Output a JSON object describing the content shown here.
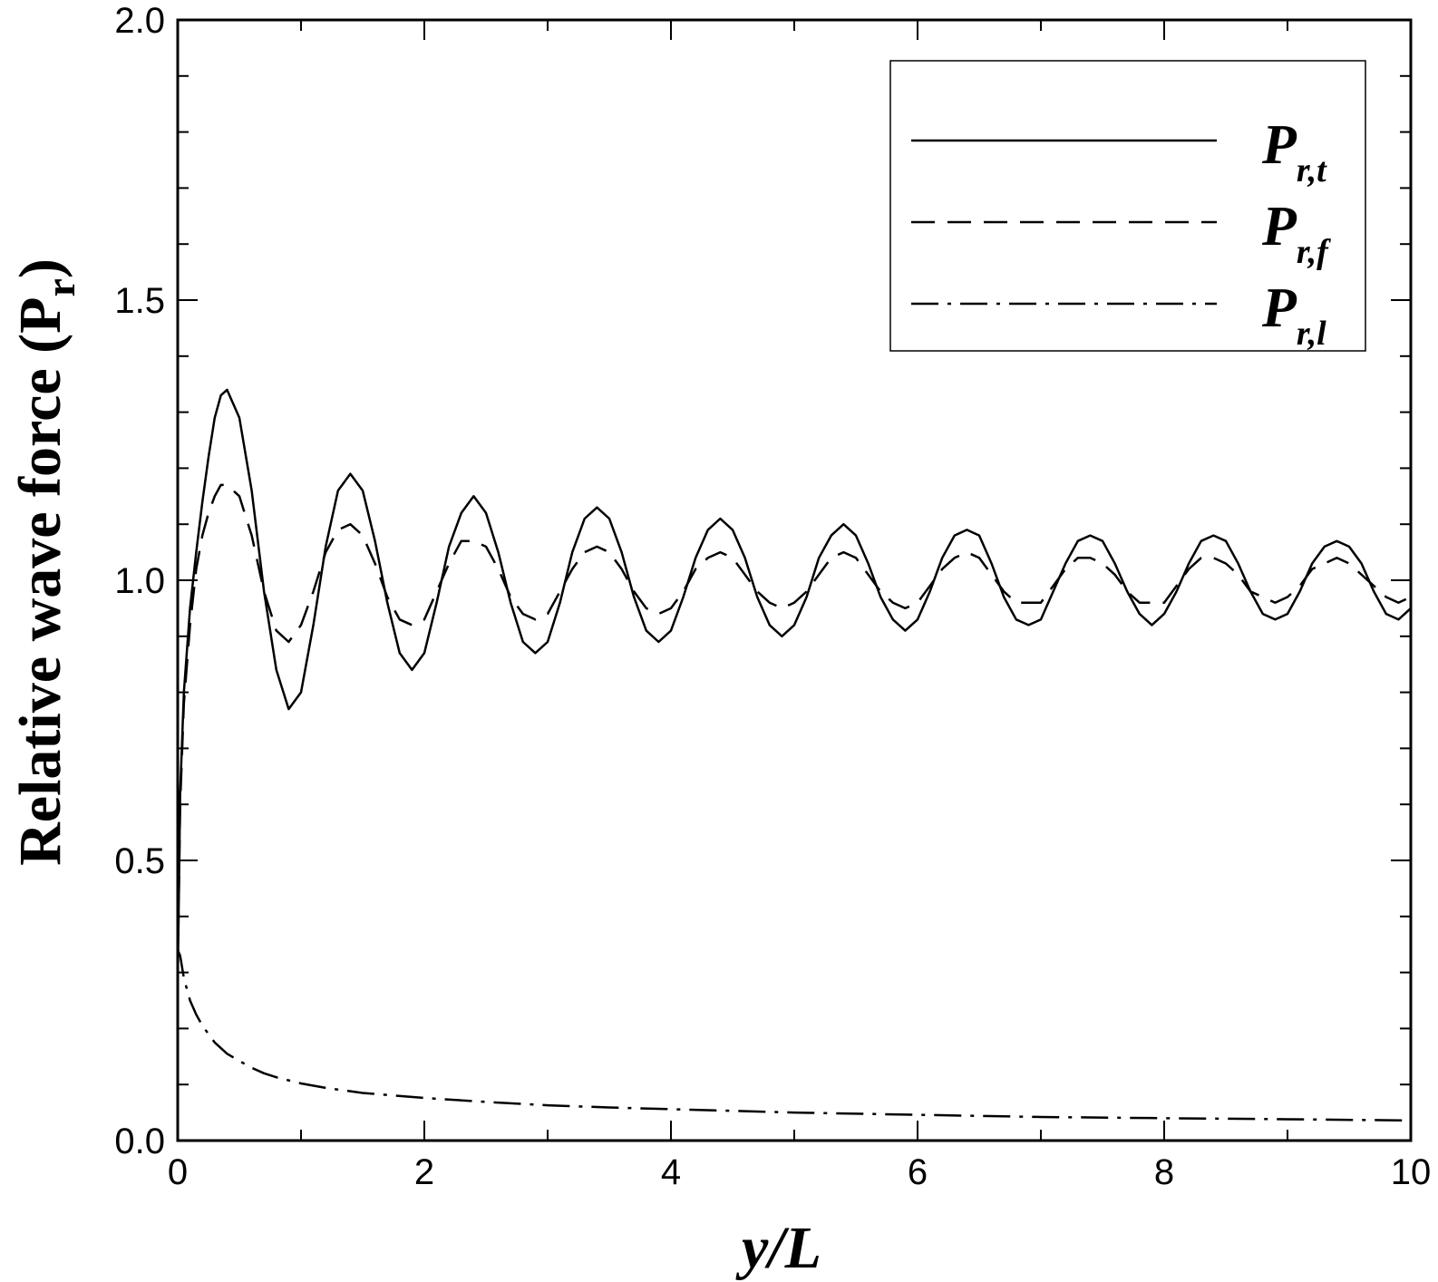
{
  "chart_data": {
    "type": "line",
    "xlabel": "y/L",
    "ylabel_main": "Relative wave force (P",
    "ylabel_sub": "r",
    "ylabel_close": ")",
    "xlim": [
      0,
      10
    ],
    "ylim": [
      0,
      2.0
    ],
    "x_ticks": [
      0,
      2,
      4,
      6,
      8,
      10
    ],
    "x_tick_labels": [
      "0",
      "2",
      "4",
      "6",
      "8",
      "10"
    ],
    "y_ticks": [
      0,
      0.5,
      1.0,
      1.5,
      2.0
    ],
    "y_tick_labels": [
      "0.0",
      "0.5",
      "1.0",
      "1.5",
      "2.0"
    ],
    "grid": false,
    "legend_position": "top-right",
    "series": [
      {
        "name_main": "P",
        "name_sub": "r,t",
        "style": "solid",
        "points": [
          [
            0.0,
            0.28
          ],
          [
            0.02,
            0.62
          ],
          [
            0.05,
            0.8
          ],
          [
            0.1,
            0.95
          ],
          [
            0.15,
            1.05
          ],
          [
            0.2,
            1.14
          ],
          [
            0.25,
            1.22
          ],
          [
            0.3,
            1.29
          ],
          [
            0.35,
            1.33
          ],
          [
            0.4,
            1.34
          ],
          [
            0.5,
            1.29
          ],
          [
            0.6,
            1.16
          ],
          [
            0.7,
            0.98
          ],
          [
            0.8,
            0.84
          ],
          [
            0.9,
            0.77
          ],
          [
            1.0,
            0.8
          ],
          [
            1.1,
            0.92
          ],
          [
            1.2,
            1.06
          ],
          [
            1.3,
            1.16
          ],
          [
            1.4,
            1.19
          ],
          [
            1.5,
            1.16
          ],
          [
            1.6,
            1.07
          ],
          [
            1.7,
            0.96
          ],
          [
            1.8,
            0.87
          ],
          [
            1.9,
            0.84
          ],
          [
            2.0,
            0.87
          ],
          [
            2.1,
            0.96
          ],
          [
            2.2,
            1.06
          ],
          [
            2.3,
            1.12
          ],
          [
            2.4,
            1.15
          ],
          [
            2.5,
            1.12
          ],
          [
            2.6,
            1.05
          ],
          [
            2.7,
            0.96
          ],
          [
            2.8,
            0.89
          ],
          [
            2.9,
            0.87
          ],
          [
            3.0,
            0.89
          ],
          [
            3.1,
            0.96
          ],
          [
            3.2,
            1.05
          ],
          [
            3.3,
            1.11
          ],
          [
            3.4,
            1.13
          ],
          [
            3.5,
            1.11
          ],
          [
            3.6,
            1.05
          ],
          [
            3.7,
            0.97
          ],
          [
            3.8,
            0.91
          ],
          [
            3.9,
            0.89
          ],
          [
            4.0,
            0.91
          ],
          [
            4.1,
            0.97
          ],
          [
            4.2,
            1.04
          ],
          [
            4.3,
            1.09
          ],
          [
            4.4,
            1.11
          ],
          [
            4.5,
            1.09
          ],
          [
            4.6,
            1.04
          ],
          [
            4.7,
            0.97
          ],
          [
            4.8,
            0.92
          ],
          [
            4.9,
            0.9
          ],
          [
            5.0,
            0.92
          ],
          [
            5.1,
            0.97
          ],
          [
            5.2,
            1.04
          ],
          [
            5.3,
            1.08
          ],
          [
            5.4,
            1.1
          ],
          [
            5.5,
            1.08
          ],
          [
            5.6,
            1.03
          ],
          [
            5.7,
            0.97
          ],
          [
            5.8,
            0.93
          ],
          [
            5.9,
            0.91
          ],
          [
            6.0,
            0.93
          ],
          [
            6.1,
            0.98
          ],
          [
            6.2,
            1.04
          ],
          [
            6.3,
            1.08
          ],
          [
            6.4,
            1.09
          ],
          [
            6.5,
            1.08
          ],
          [
            6.6,
            1.03
          ],
          [
            6.7,
            0.97
          ],
          [
            6.8,
            0.93
          ],
          [
            6.9,
            0.92
          ],
          [
            7.0,
            0.93
          ],
          [
            7.1,
            0.98
          ],
          [
            7.2,
            1.03
          ],
          [
            7.3,
            1.07
          ],
          [
            7.4,
            1.08
          ],
          [
            7.5,
            1.07
          ],
          [
            7.6,
            1.03
          ],
          [
            7.7,
            0.98
          ],
          [
            7.8,
            0.94
          ],
          [
            7.9,
            0.92
          ],
          [
            8.0,
            0.94
          ],
          [
            8.1,
            0.98
          ],
          [
            8.2,
            1.03
          ],
          [
            8.3,
            1.07
          ],
          [
            8.4,
            1.08
          ],
          [
            8.5,
            1.07
          ],
          [
            8.6,
            1.03
          ],
          [
            8.7,
            0.98
          ],
          [
            8.8,
            0.94
          ],
          [
            8.9,
            0.93
          ],
          [
            9.0,
            0.94
          ],
          [
            9.1,
            0.98
          ],
          [
            9.2,
            1.03
          ],
          [
            9.3,
            1.06
          ],
          [
            9.4,
            1.07
          ],
          [
            9.5,
            1.06
          ],
          [
            9.6,
            1.03
          ],
          [
            9.7,
            0.98
          ],
          [
            9.8,
            0.94
          ],
          [
            9.9,
            0.93
          ],
          [
            10.0,
            0.95
          ]
        ]
      },
      {
        "name_main": "P",
        "name_sub": "r,f",
        "style": "dashed",
        "points": [
          [
            0.0,
            0.3
          ],
          [
            0.02,
            0.6
          ],
          [
            0.05,
            0.78
          ],
          [
            0.1,
            0.92
          ],
          [
            0.15,
            1.02
          ],
          [
            0.2,
            1.08
          ],
          [
            0.25,
            1.12
          ],
          [
            0.3,
            1.15
          ],
          [
            0.35,
            1.17
          ],
          [
            0.4,
            1.17
          ],
          [
            0.5,
            1.15
          ],
          [
            0.6,
            1.08
          ],
          [
            0.7,
            0.98
          ],
          [
            0.8,
            0.91
          ],
          [
            0.9,
            0.89
          ],
          [
            1.0,
            0.92
          ],
          [
            1.1,
            0.98
          ],
          [
            1.2,
            1.05
          ],
          [
            1.3,
            1.09
          ],
          [
            1.4,
            1.1
          ],
          [
            1.5,
            1.08
          ],
          [
            1.6,
            1.03
          ],
          [
            1.7,
            0.97
          ],
          [
            1.8,
            0.93
          ],
          [
            1.9,
            0.92
          ],
          [
            2.0,
            0.93
          ],
          [
            2.1,
            0.98
          ],
          [
            2.2,
            1.03
          ],
          [
            2.3,
            1.07
          ],
          [
            2.4,
            1.07
          ],
          [
            2.5,
            1.06
          ],
          [
            2.6,
            1.02
          ],
          [
            2.7,
            0.97
          ],
          [
            2.8,
            0.94
          ],
          [
            2.9,
            0.93
          ],
          [
            3.0,
            0.94
          ],
          [
            3.1,
            0.98
          ],
          [
            3.2,
            1.02
          ],
          [
            3.3,
            1.05
          ],
          [
            3.4,
            1.06
          ],
          [
            3.5,
            1.05
          ],
          [
            3.6,
            1.02
          ],
          [
            3.7,
            0.98
          ],
          [
            3.8,
            0.95
          ],
          [
            3.9,
            0.94
          ],
          [
            4.0,
            0.95
          ],
          [
            4.1,
            0.98
          ],
          [
            4.2,
            1.02
          ],
          [
            4.3,
            1.04
          ],
          [
            4.4,
            1.05
          ],
          [
            4.5,
            1.04
          ],
          [
            4.6,
            1.01
          ],
          [
            4.7,
            0.98
          ],
          [
            4.8,
            0.96
          ],
          [
            4.9,
            0.95
          ],
          [
            5.0,
            0.96
          ],
          [
            5.1,
            0.98
          ],
          [
            5.2,
            1.01
          ],
          [
            5.3,
            1.04
          ],
          [
            5.4,
            1.05
          ],
          [
            5.5,
            1.04
          ],
          [
            5.6,
            1.01
          ],
          [
            5.7,
            0.98
          ],
          [
            5.8,
            0.96
          ],
          [
            5.9,
            0.95
          ],
          [
            6.0,
            0.96
          ],
          [
            6.1,
            0.99
          ],
          [
            6.2,
            1.02
          ],
          [
            6.3,
            1.04
          ],
          [
            6.4,
            1.05
          ],
          [
            6.5,
            1.04
          ],
          [
            6.6,
            1.01
          ],
          [
            6.7,
            0.98
          ],
          [
            6.8,
            0.96
          ],
          [
            6.9,
            0.96
          ],
          [
            7.0,
            0.96
          ],
          [
            7.1,
            0.99
          ],
          [
            7.2,
            1.02
          ],
          [
            7.3,
            1.04
          ],
          [
            7.4,
            1.04
          ],
          [
            7.5,
            1.03
          ],
          [
            7.6,
            1.01
          ],
          [
            7.7,
            0.98
          ],
          [
            7.8,
            0.96
          ],
          [
            7.9,
            0.96
          ],
          [
            8.0,
            0.96
          ],
          [
            8.1,
            0.99
          ],
          [
            8.2,
            1.02
          ],
          [
            8.3,
            1.04
          ],
          [
            8.4,
            1.04
          ],
          [
            8.5,
            1.03
          ],
          [
            8.6,
            1.01
          ],
          [
            8.7,
            0.98
          ],
          [
            8.8,
            0.97
          ],
          [
            8.9,
            0.96
          ],
          [
            9.0,
            0.97
          ],
          [
            9.1,
            0.99
          ],
          [
            9.2,
            1.02
          ],
          [
            9.3,
            1.03
          ],
          [
            9.4,
            1.04
          ],
          [
            9.5,
            1.03
          ],
          [
            9.6,
            1.01
          ],
          [
            9.7,
            0.99
          ],
          [
            9.8,
            0.97
          ],
          [
            9.9,
            0.96
          ],
          [
            10.0,
            0.97
          ]
        ]
      },
      {
        "name_main": "P",
        "name_sub": "r,l",
        "style": "dashdot",
        "points": [
          [
            0.0,
            0.34
          ],
          [
            0.02,
            0.33
          ],
          [
            0.05,
            0.29
          ],
          [
            0.1,
            0.25
          ],
          [
            0.15,
            0.225
          ],
          [
            0.2,
            0.205
          ],
          [
            0.3,
            0.175
          ],
          [
            0.4,
            0.155
          ],
          [
            0.5,
            0.142
          ],
          [
            0.6,
            0.13
          ],
          [
            0.7,
            0.12
          ],
          [
            0.8,
            0.113
          ],
          [
            1.0,
            0.102
          ],
          [
            1.2,
            0.094
          ],
          [
            1.5,
            0.085
          ],
          [
            2.0,
            0.076
          ],
          [
            2.5,
            0.069
          ],
          [
            3.0,
            0.063
          ],
          [
            3.5,
            0.059
          ],
          [
            4.0,
            0.056
          ],
          [
            5.0,
            0.05
          ],
          [
            6.0,
            0.046
          ],
          [
            7.0,
            0.042
          ],
          [
            8.0,
            0.04
          ],
          [
            9.0,
            0.038
          ],
          [
            10.0,
            0.036
          ]
        ]
      }
    ]
  }
}
